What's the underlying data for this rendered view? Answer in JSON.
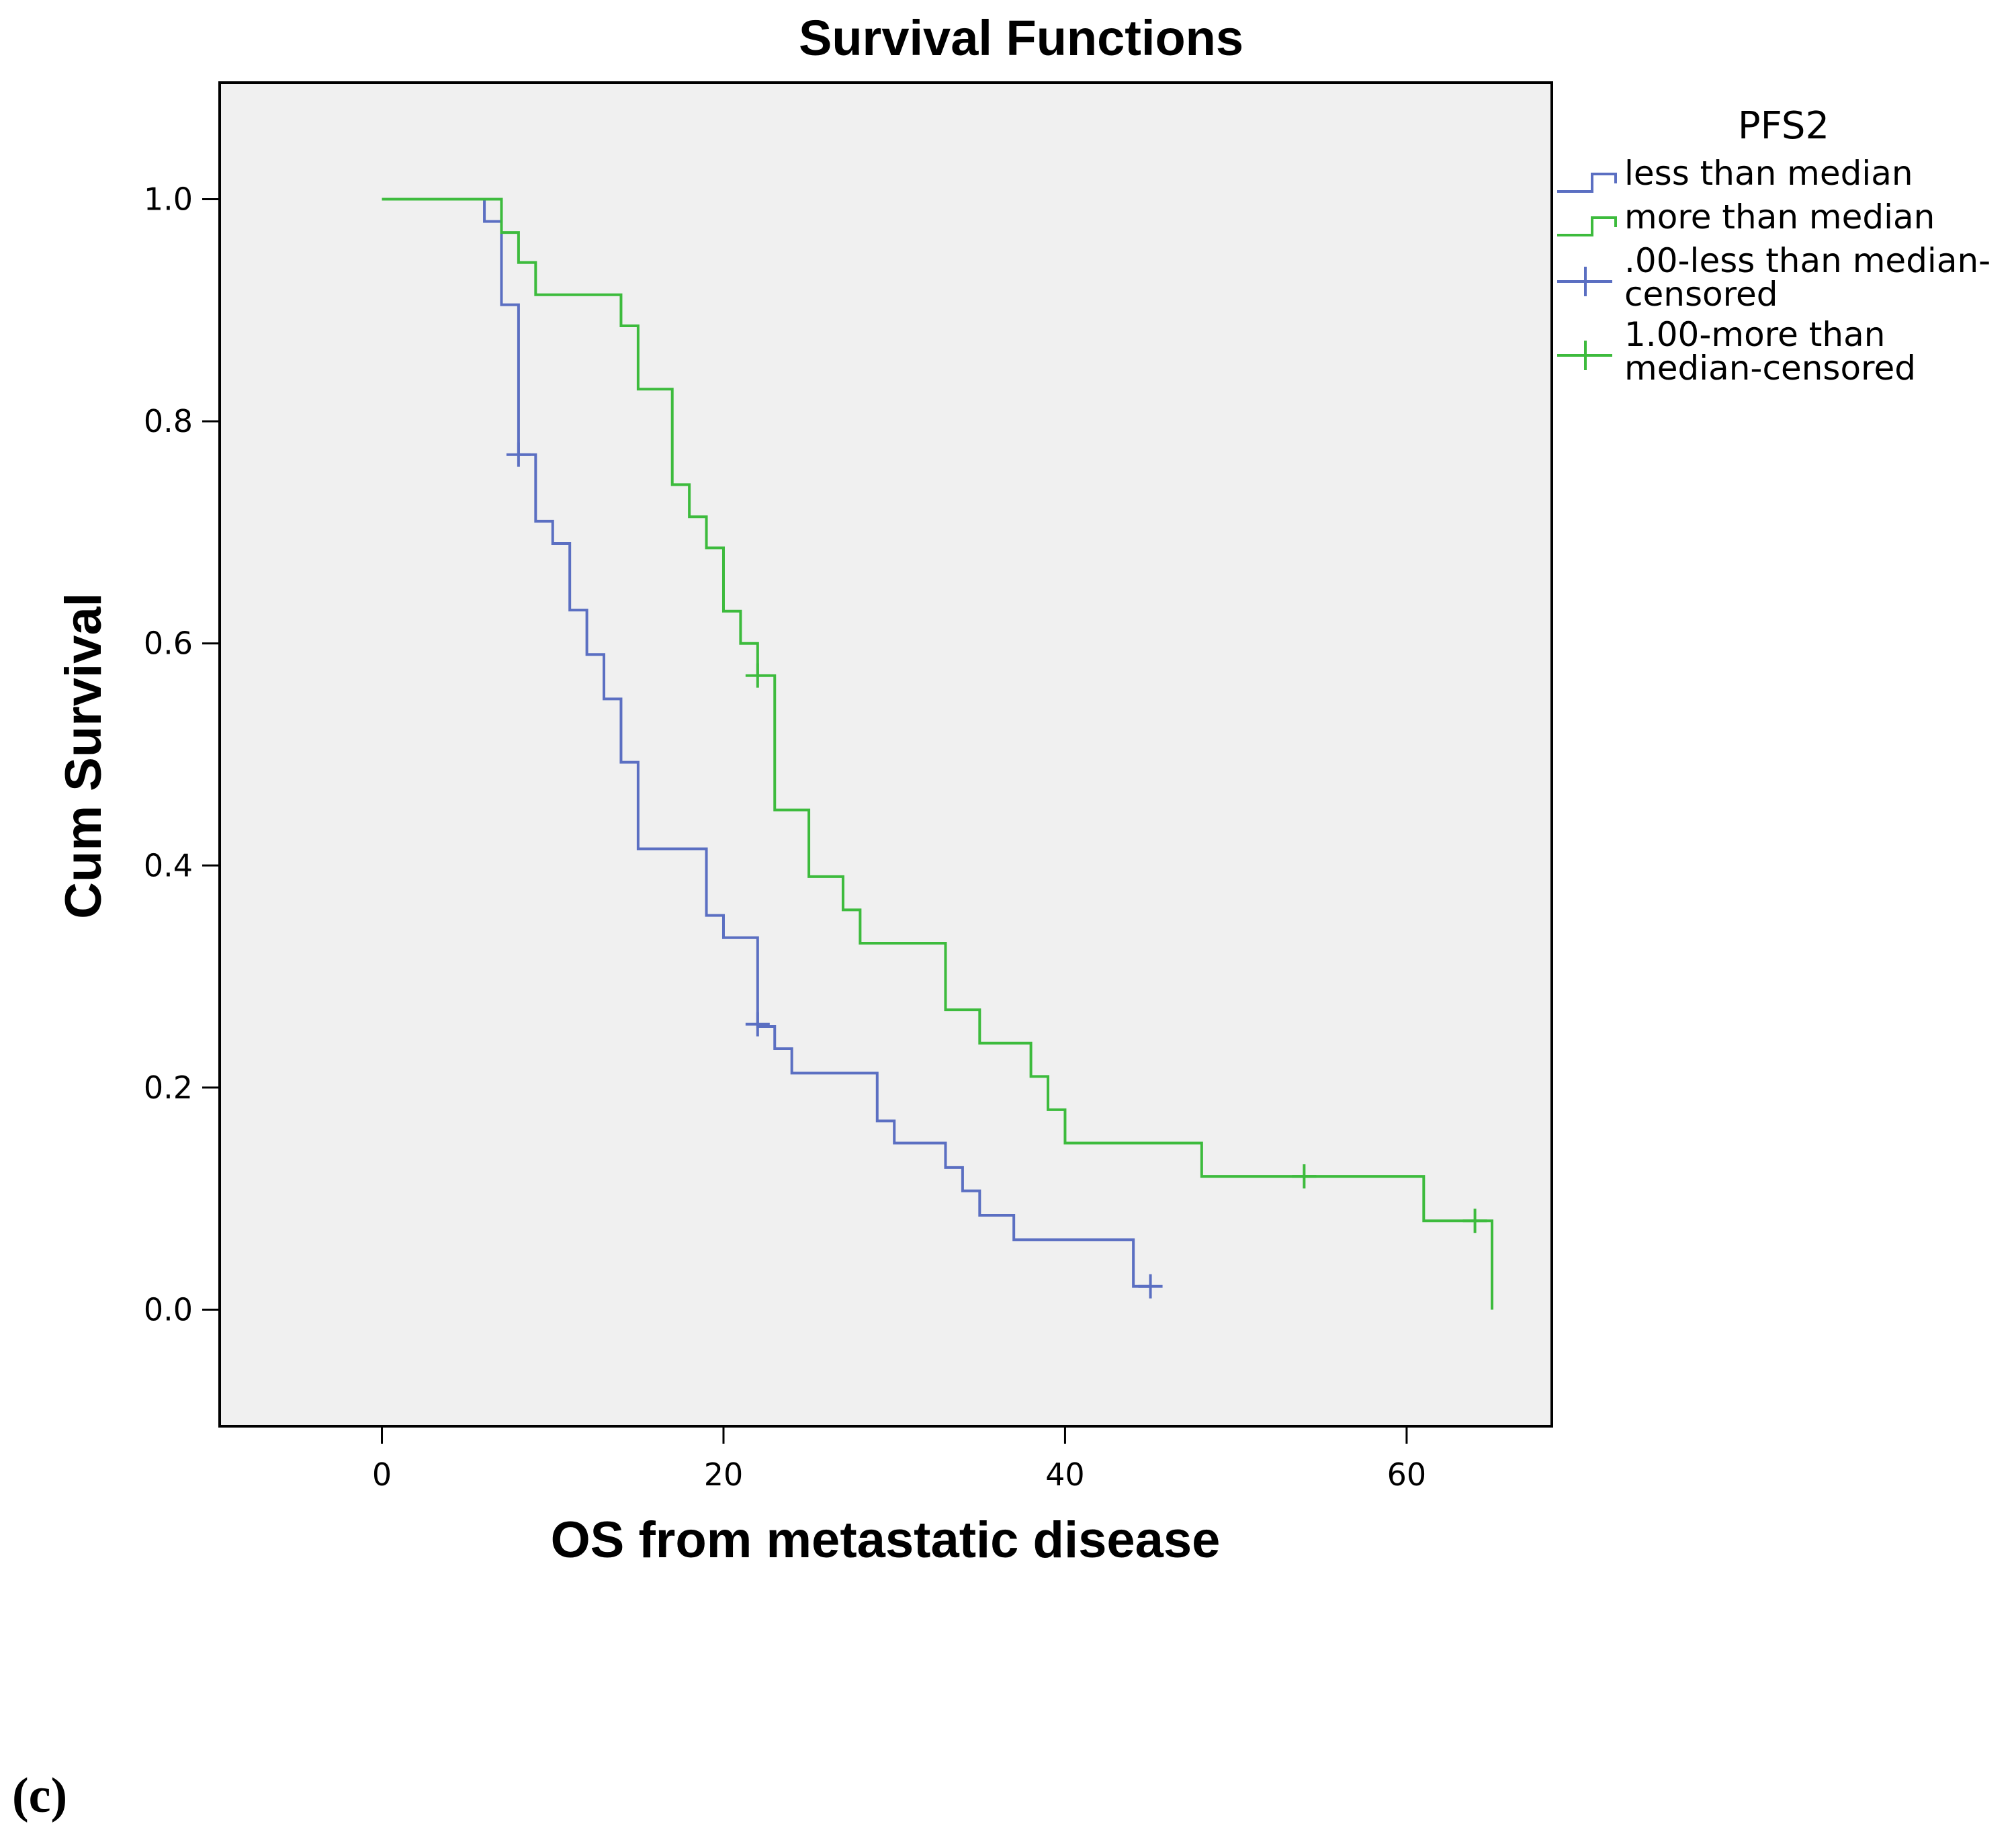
{
  "chart_data": {
    "type": "line",
    "subtype": "kaplan-meier-step",
    "title": "Survival Functions",
    "xlabel": "OS from metastatic disease",
    "ylabel": "Cum Survival",
    "xlim": [
      -9.5,
      68.5
    ],
    "ylim": [
      -0.105,
      1.105
    ],
    "xticks": [
      0,
      20,
      40,
      60
    ],
    "yticks": [
      0.0,
      0.2,
      0.4,
      0.6,
      0.8,
      1.0
    ],
    "xtick_labels": [
      "0",
      "20",
      "40",
      "60"
    ],
    "ytick_labels": [
      "0.0",
      "0.2",
      "0.4",
      "0.6",
      "0.8",
      "1.0"
    ],
    "grid": false,
    "legend": {
      "title": "PFS2",
      "placement": "right",
      "entries": [
        {
          "key": "less",
          "kind": "step",
          "lines": [
            "less than median"
          ]
        },
        {
          "key": "more",
          "kind": "step",
          "lines": [
            "more than median"
          ]
        },
        {
          "key": "less_cens",
          "kind": "censor",
          "lines": [
            ".00-less than median-",
            "censored"
          ]
        },
        {
          "key": "more_cens",
          "kind": "censor",
          "lines": [
            "1.00-more than",
            "median-censored"
          ]
        }
      ]
    },
    "series": [
      {
        "name": "less than median",
        "color": "#5b6fc2",
        "steps": [
          [
            0,
            1.0
          ],
          [
            6,
            0.98
          ],
          [
            7,
            0.905
          ],
          [
            8,
            0.77
          ],
          [
            9,
            0.71
          ],
          [
            10,
            0.69
          ],
          [
            11,
            0.63
          ],
          [
            12,
            0.59
          ],
          [
            13,
            0.55
          ],
          [
            14,
            0.493
          ],
          [
            15,
            0.415
          ],
          [
            19,
            0.355
          ],
          [
            20,
            0.335
          ],
          [
            22,
            0.255
          ],
          [
            23,
            0.235
          ],
          [
            24,
            0.213
          ],
          [
            29,
            0.17
          ],
          [
            30,
            0.15
          ],
          [
            33,
            0.128
          ],
          [
            34,
            0.107
          ],
          [
            35,
            0.085
          ],
          [
            37,
            0.063
          ],
          [
            44,
            0.021
          ],
          [
            45,
            0.021
          ]
        ],
        "censored": [
          [
            8,
            0.77
          ],
          [
            22,
            0.257
          ],
          [
            45,
            0.021
          ]
        ]
      },
      {
        "name": "more than median",
        "color": "#3dbb3d",
        "steps": [
          [
            0,
            1.0
          ],
          [
            7,
            0.97
          ],
          [
            8,
            0.943
          ],
          [
            9,
            0.914
          ],
          [
            14,
            0.886
          ],
          [
            15,
            0.829
          ],
          [
            17,
            0.743
          ],
          [
            18,
            0.714
          ],
          [
            19,
            0.686
          ],
          [
            20,
            0.629
          ],
          [
            21,
            0.6
          ],
          [
            22,
            0.571
          ],
          [
            23,
            0.45
          ],
          [
            25,
            0.39
          ],
          [
            27,
            0.36
          ],
          [
            28,
            0.33
          ],
          [
            33,
            0.27
          ],
          [
            35,
            0.24
          ],
          [
            38,
            0.21
          ],
          [
            39,
            0.18
          ],
          [
            40,
            0.15
          ],
          [
            48,
            0.12
          ],
          [
            61,
            0.08
          ],
          [
            65,
            0.0
          ]
        ],
        "censored": [
          [
            22,
            0.571
          ],
          [
            54,
            0.12
          ],
          [
            64,
            0.08
          ]
        ]
      }
    ]
  },
  "panel_label": "(c)",
  "colors": {
    "plot_background": "#f0f0f0",
    "frame": "#000000",
    "less_than_median": "#5b6fc2",
    "more_than_median": "#3dbb3d"
  }
}
